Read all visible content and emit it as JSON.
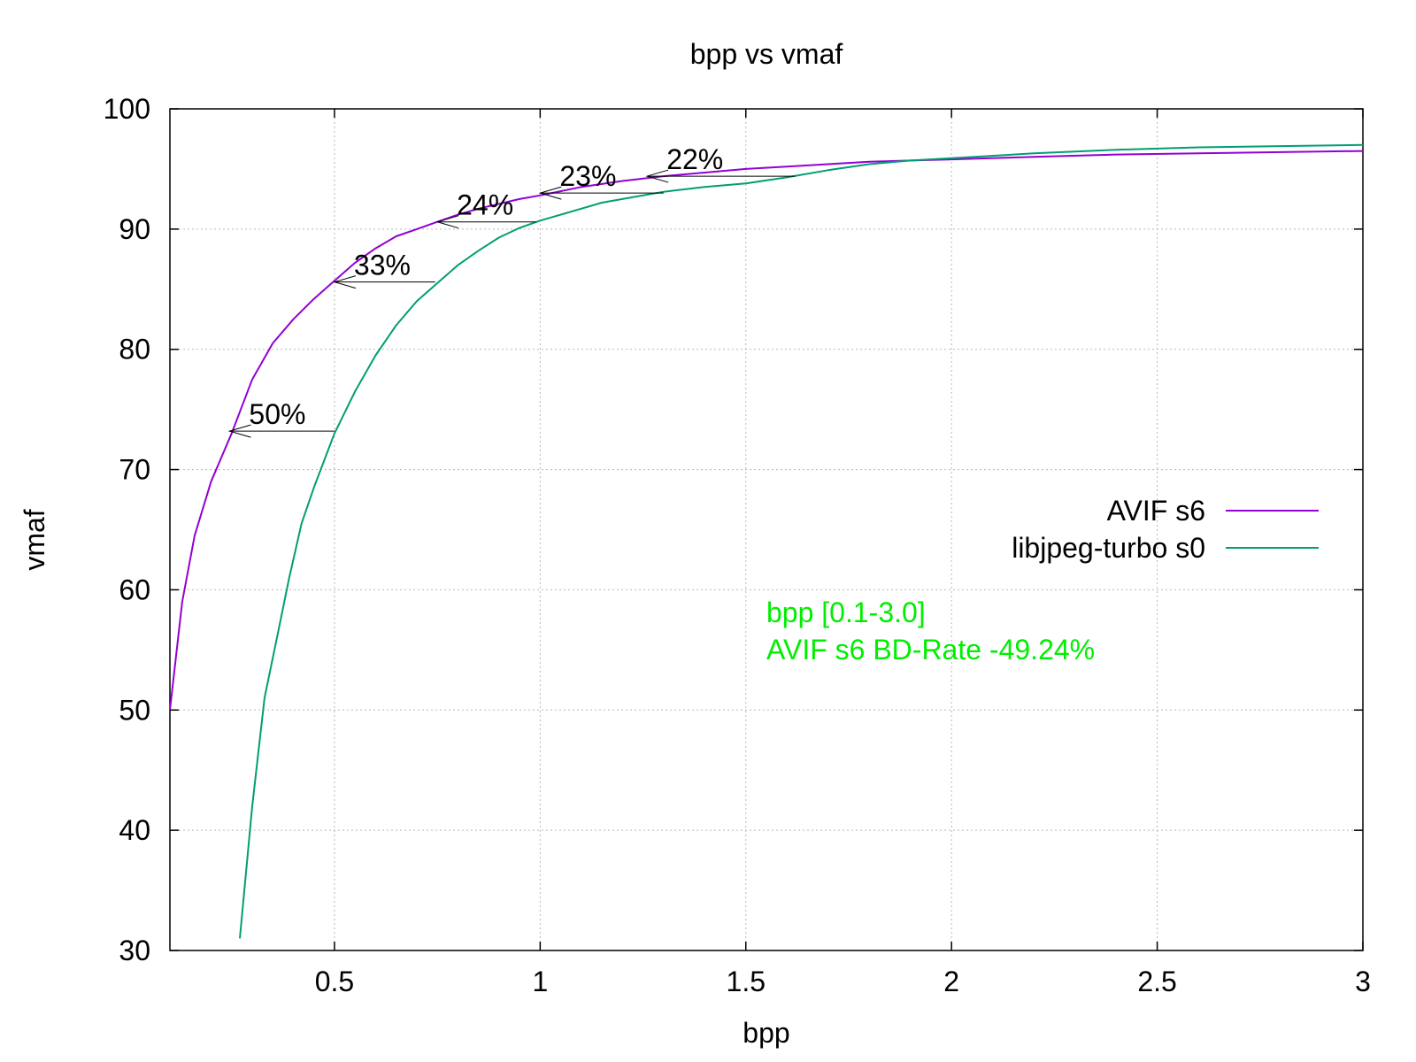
{
  "chart_data": {
    "type": "line",
    "title": "bpp vs vmaf",
    "xlabel": "bpp",
    "ylabel": "vmaf",
    "xlim": [
      0.1,
      3.0
    ],
    "ylim": [
      30,
      100
    ],
    "xticks": [
      0.5,
      1,
      1.5,
      2,
      2.5,
      3
    ],
    "yticks": [
      30,
      40,
      50,
      60,
      70,
      80,
      90,
      100
    ],
    "grid": true,
    "legend_position": "right",
    "series": [
      {
        "name": "AVIF s6",
        "color": "#9400d3",
        "x": [
          0.1,
          0.13,
          0.16,
          0.2,
          0.25,
          0.3,
          0.35,
          0.4,
          0.45,
          0.5,
          0.55,
          0.6,
          0.65,
          0.7,
          0.75,
          0.8,
          0.85,
          0.9,
          0.95,
          1.0,
          1.1,
          1.2,
          1.3,
          1.4,
          1.5,
          1.6,
          1.7,
          1.8,
          1.9,
          2.0,
          2.2,
          2.4,
          2.6,
          2.8,
          3.0
        ],
        "y": [
          50,
          59,
          64.5,
          69,
          73,
          77.5,
          80.5,
          82.5,
          84.2,
          85.7,
          87.2,
          88.4,
          89.4,
          90.0,
          90.6,
          91.2,
          91.7,
          92.1,
          92.5,
          92.8,
          93.5,
          94.0,
          94.4,
          94.7,
          95.0,
          95.2,
          95.4,
          95.6,
          95.7,
          95.8,
          96.0,
          96.2,
          96.3,
          96.4,
          96.5
        ]
      },
      {
        "name": "libjpeg-turbo s0",
        "color": "#009e73",
        "x": [
          0.27,
          0.3,
          0.33,
          0.36,
          0.39,
          0.42,
          0.45,
          0.5,
          0.55,
          0.6,
          0.65,
          0.7,
          0.75,
          0.8,
          0.85,
          0.9,
          0.95,
          1.0,
          1.05,
          1.1,
          1.15,
          1.2,
          1.3,
          1.4,
          1.5,
          1.6,
          1.7,
          1.8,
          1.9,
          2.0,
          2.2,
          2.4,
          2.6,
          2.8,
          3.0
        ],
        "y": [
          31,
          42,
          51,
          56,
          61,
          65.5,
          68.5,
          73,
          76.5,
          79.5,
          82,
          84,
          85.5,
          87,
          88.2,
          89.3,
          90.1,
          90.7,
          91.2,
          91.7,
          92.2,
          92.5,
          93.1,
          93.5,
          93.8,
          94.3,
          94.9,
          95.4,
          95.7,
          95.9,
          96.3,
          96.6,
          96.8,
          96.9,
          97.0
        ]
      }
    ],
    "annotations": [
      {
        "text": "50%",
        "y": 73.2,
        "x_from": 0.5,
        "x_to": 0.245
      },
      {
        "text": "33%",
        "y": 85.6,
        "x_from": 0.745,
        "x_to": 0.5
      },
      {
        "text": "24%",
        "y": 90.6,
        "x_from": 0.99,
        "x_to": 0.75
      },
      {
        "text": "23%",
        "y": 93.0,
        "x_from": 1.3,
        "x_to": 1.0
      },
      {
        "text": "22%",
        "y": 94.4,
        "x_from": 1.62,
        "x_to": 1.26
      }
    ],
    "note": {
      "color": "#00ee00",
      "lines": [
        "bpp [0.1-3.0]",
        "AVIF s6 BD-Rate -49.24%"
      ]
    }
  }
}
